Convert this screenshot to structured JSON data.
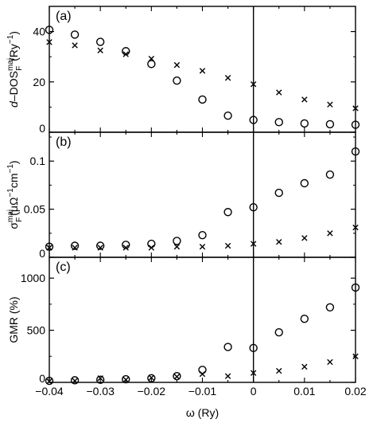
{
  "chart_data": [
    {
      "type": "scatter",
      "panel_label": "(a)",
      "ylabel": "d–DOS_F^maj (Ry^-1)",
      "ylabel_parts": {
        "pre": "d–DOS",
        "sub": "F",
        "sup": "maj",
        "post": " (Ry",
        "post_sup": "−1",
        "end": ")"
      },
      "xlim": [
        -0.04,
        0.02
      ],
      "ylim": [
        0,
        50
      ],
      "yticks": [
        0,
        20,
        40
      ],
      "ytick_labels": [
        "0",
        "20",
        "40"
      ],
      "vline_x": 0,
      "series": [
        {
          "marker": "circle",
          "x": [
            -0.04,
            -0.035,
            -0.03,
            -0.025,
            -0.02,
            -0.015,
            -0.01,
            -0.005,
            0,
            0.005,
            0.01,
            0.015,
            0.02
          ],
          "y": [
            40.7,
            38.8,
            35.9,
            32.2,
            27.1,
            20.5,
            13.0,
            6.6,
            4.9,
            4.0,
            3.5,
            3.2,
            3.0
          ]
        },
        {
          "marker": "cross",
          "x": [
            -0.04,
            -0.035,
            -0.03,
            -0.025,
            -0.02,
            -0.015,
            -0.01,
            -0.005,
            0,
            0.005,
            0.01,
            0.015,
            0.02
          ],
          "y": [
            35.8,
            34.5,
            32.5,
            31.0,
            29.2,
            26.7,
            24.4,
            21.6,
            19.1,
            15.8,
            13.0,
            11.0,
            9.5
          ]
        }
      ]
    },
    {
      "type": "scatter",
      "panel_label": "(b)",
      "ylabel": "σ_F^maj (μΩ^-1cm^-1)",
      "ylabel_parts": {
        "pre": "σ",
        "sub": "F",
        "sup": "maj",
        "post": "(μΩ",
        "post_sup": "−1",
        "mid": "cm",
        "mid_sup": "−1",
        "end": ")"
      },
      "xlim": [
        -0.04,
        0.02
      ],
      "ylim": [
        0,
        0.13
      ],
      "yticks": [
        0,
        0.05,
        0.1
      ],
      "ytick_labels": [
        "0",
        "0.05",
        "0.1"
      ],
      "vline_x": 0,
      "series": [
        {
          "marker": "circle",
          "x": [
            -0.04,
            -0.035,
            -0.03,
            -0.025,
            -0.02,
            -0.015,
            -0.01,
            -0.005,
            0,
            0.005,
            0.01,
            0.015,
            0.02
          ],
          "y": [
            0.011,
            0.012,
            0.012,
            0.013,
            0.014,
            0.017,
            0.023,
            0.047,
            0.052,
            0.067,
            0.077,
            0.086,
            0.11
          ]
        },
        {
          "marker": "cross",
          "x": [
            -0.04,
            -0.035,
            -0.03,
            -0.025,
            -0.02,
            -0.015,
            -0.01,
            -0.005,
            0,
            0.005,
            0.01,
            0.015,
            0.02
          ],
          "y": [
            0.01,
            0.01,
            0.01,
            0.01,
            0.01,
            0.011,
            0.011,
            0.012,
            0.014,
            0.016,
            0.02,
            0.025,
            0.031
          ]
        }
      ]
    },
    {
      "type": "scatter",
      "panel_label": "(c)",
      "ylabel": "GMR (%)",
      "xlabel": "ω (Ry)",
      "xlim": [
        -0.04,
        0.02
      ],
      "ylim": [
        0,
        1200
      ],
      "yticks": [
        0,
        500,
        1000
      ],
      "ytick_labels": [
        "0",
        "500",
        "1000"
      ],
      "xticks": [
        -0.04,
        -0.03,
        -0.02,
        -0.01,
        0,
        0.01,
        0.02
      ],
      "xtick_labels": [
        "−0.04",
        "−0.03",
        "−0.02",
        "−0.01",
        "0",
        "0.01",
        "0.02"
      ],
      "vline_x": 0,
      "series": [
        {
          "marker": "circle",
          "x": [
            -0.04,
            -0.035,
            -0.03,
            -0.025,
            -0.02,
            -0.015,
            -0.01,
            -0.005,
            0,
            0.005,
            0.01,
            0.015,
            0.02
          ],
          "y": [
            15,
            20,
            25,
            30,
            40,
            60,
            120,
            340,
            330,
            480,
            610,
            720,
            910
          ]
        },
        {
          "marker": "cross",
          "x": [
            -0.04,
            -0.035,
            -0.03,
            -0.025,
            -0.02,
            -0.015,
            -0.01,
            -0.005,
            0,
            0.005,
            0.01,
            0.015,
            0.02
          ],
          "y": [
            10,
            15,
            40,
            25,
            45,
            55,
            80,
            60,
            90,
            110,
            150,
            195,
            250
          ]
        }
      ]
    }
  ]
}
